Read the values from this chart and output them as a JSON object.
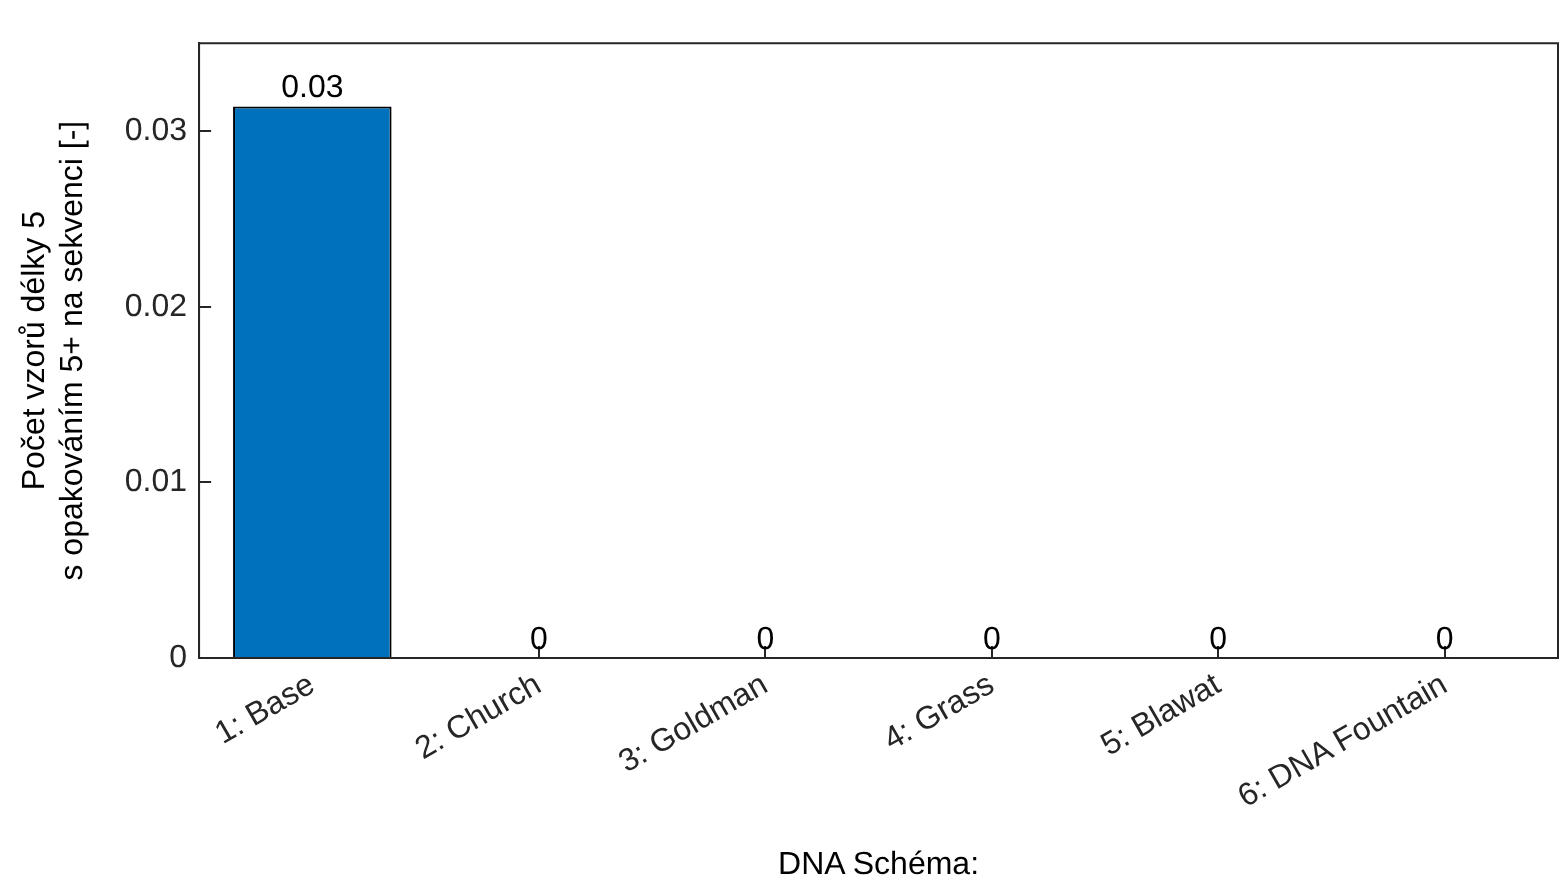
{
  "chart_data": {
    "type": "bar",
    "categories": [
      "1: Base",
      "2: Church",
      "3: Goldman",
      "4: Grass",
      "5: Blawat",
      "6: DNA Fountain"
    ],
    "values": [
      0.0314,
      0,
      0,
      0,
      0,
      0
    ],
    "value_labels": [
      "0.03",
      "0",
      "0",
      "0",
      "0",
      "0"
    ],
    "color": "#0072bd",
    "xlabel": "DNA Schéma:",
    "ylabel": "Počet vzorů délky 5\ns opakováním 5+ na sekvenci [-]",
    "ylim": [
      0,
      0.035
    ],
    "yticks": [
      0,
      0.01,
      0.02,
      0.03
    ],
    "grid": false,
    "legend": false
  }
}
